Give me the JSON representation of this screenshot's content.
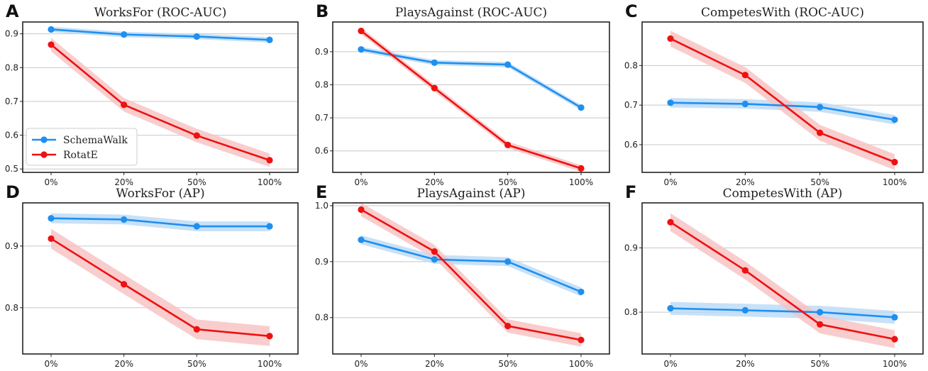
{
  "legend": {
    "schemawalk": "SchemaWalk",
    "rotate": "RotatE"
  },
  "colors": {
    "schemawalk": "#1f8ff0",
    "rotate": "#ee1111",
    "schemawalk_band": "#b9d9f6",
    "rotate_band": "#f7c0c0"
  },
  "chart_data": [
    {
      "label": "A",
      "type": "line",
      "title": "WorksFor (ROC-AUC)",
      "categories": [
        "0%",
        "20%",
        "50%",
        "100%"
      ],
      "ylim": [
        0.49,
        0.935
      ],
      "yticks": [
        "0.5",
        "0.6",
        "0.7",
        "0.8",
        "0.9"
      ],
      "grid": true,
      "series": [
        {
          "name": "SchemaWalk",
          "values": [
            0.913,
            0.898,
            0.892,
            0.882
          ],
          "band": 0.008
        },
        {
          "name": "RotatE",
          "values": [
            0.868,
            0.69,
            0.599,
            0.526
          ],
          "band": 0.02
        }
      ],
      "legend_position": "lower-left"
    },
    {
      "label": "B",
      "type": "line",
      "title": "PlaysAgainst (ROC-AUC)",
      "categories": [
        "0%",
        "20%",
        "50%",
        "100%"
      ],
      "ylim": [
        0.535,
        0.99
      ],
      "yticks": [
        "0.6",
        "0.7",
        "0.8",
        "0.9"
      ],
      "grid": true,
      "series": [
        {
          "name": "SchemaWalk",
          "values": [
            0.907,
            0.867,
            0.861,
            0.731
          ],
          "band": 0.008
        },
        {
          "name": "RotatE",
          "values": [
            0.963,
            0.79,
            0.618,
            0.547
          ],
          "band": 0.01
        }
      ]
    },
    {
      "label": "C",
      "type": "line",
      "title": "CompetesWith (ROC-AUC)",
      "categories": [
        "0%",
        "20%",
        "50%",
        "100%"
      ],
      "ylim": [
        0.53,
        0.91
      ],
      "yticks": [
        "0.6",
        "0.7",
        "0.8"
      ],
      "grid": true,
      "series": [
        {
          "name": "SchemaWalk",
          "values": [
            0.706,
            0.703,
            0.695,
            0.663
          ],
          "band": 0.012
        },
        {
          "name": "RotatE",
          "values": [
            0.868,
            0.776,
            0.63,
            0.556
          ],
          "band": 0.02
        }
      ]
    },
    {
      "label": "D",
      "type": "line",
      "title": "WorksFor (AP)",
      "categories": [
        "0%",
        "20%",
        "50%",
        "100%"
      ],
      "ylim": [
        0.725,
        0.97
      ],
      "yticks": [
        "0.8",
        "0.9"
      ],
      "grid": true,
      "series": [
        {
          "name": "SchemaWalk",
          "values": [
            0.945,
            0.943,
            0.932,
            0.932
          ],
          "band": 0.008
        },
        {
          "name": "RotatE",
          "values": [
            0.912,
            0.838,
            0.765,
            0.754
          ],
          "band": 0.016
        }
      ]
    },
    {
      "label": "E",
      "type": "line",
      "title": "PlaysAgainst (AP)",
      "categories": [
        "0%",
        "20%",
        "50%",
        "100%"
      ],
      "ylim": [
        0.735,
        1.005
      ],
      "yticks": [
        "0.8",
        "0.9",
        "1.0"
      ],
      "grid": true,
      "series": [
        {
          "name": "SchemaWalk",
          "values": [
            0.939,
            0.904,
            0.9,
            0.846
          ],
          "band": 0.008
        },
        {
          "name": "RotatE",
          "values": [
            0.993,
            0.918,
            0.785,
            0.76
          ],
          "band": 0.012
        }
      ]
    },
    {
      "label": "F",
      "type": "line",
      "title": "CompetesWith (AP)",
      "categories": [
        "0%",
        "20%",
        "50%",
        "100%"
      ],
      "ylim": [
        0.735,
        0.97
      ],
      "yticks": [
        "0.8",
        "0.9"
      ],
      "grid": true,
      "series": [
        {
          "name": "SchemaWalk",
          "values": [
            0.806,
            0.803,
            0.8,
            0.792
          ],
          "band": 0.01
        },
        {
          "name": "RotatE",
          "values": [
            0.94,
            0.865,
            0.781,
            0.758
          ],
          "band": 0.014
        }
      ]
    }
  ]
}
